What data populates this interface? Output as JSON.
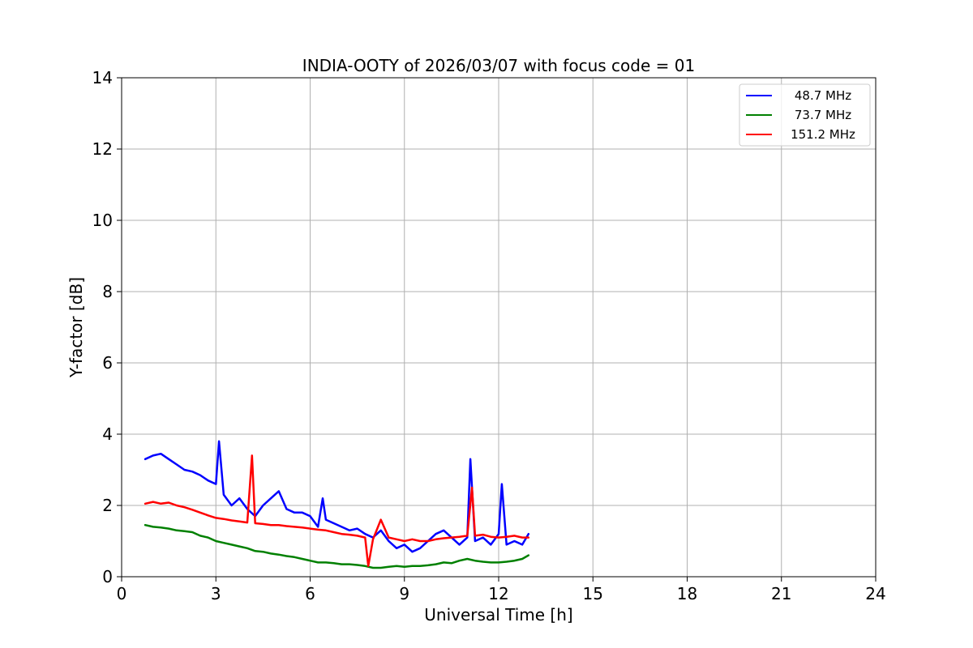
{
  "chart_data": {
    "type": "line",
    "title": "INDIA-OOTY of 2026/03/07 with focus code = 01",
    "xlabel": "Universal Time [h]",
    "ylabel": "Y-factor [dB]",
    "xlim": [
      0,
      24
    ],
    "ylim": [
      0,
      14
    ],
    "x_ticks": [
      0,
      3,
      6,
      9,
      12,
      15,
      18,
      21,
      24
    ],
    "y_ticks": [
      0,
      2,
      4,
      6,
      8,
      10,
      12,
      14
    ],
    "grid": true,
    "legend_position": "top-right",
    "series": [
      {
        "name": "48.7 MHz",
        "color": "#0000ff",
        "x": [
          0.75,
          1.0,
          1.25,
          1.5,
          1.75,
          2.0,
          2.25,
          2.5,
          2.75,
          3.0,
          3.1,
          3.25,
          3.5,
          3.75,
          4.0,
          4.25,
          4.5,
          4.75,
          5.0,
          5.25,
          5.5,
          5.75,
          6.0,
          6.25,
          6.4,
          6.5,
          6.75,
          7.0,
          7.25,
          7.5,
          7.75,
          8.0,
          8.25,
          8.5,
          8.75,
          9.0,
          9.25,
          9.5,
          9.75,
          10.0,
          10.25,
          10.5,
          10.75,
          11.0,
          11.1,
          11.25,
          11.5,
          11.75,
          12.0,
          12.1,
          12.25,
          12.5,
          12.75,
          12.95
        ],
        "y": [
          3.3,
          3.4,
          3.45,
          3.3,
          3.15,
          3.0,
          2.95,
          2.85,
          2.7,
          2.6,
          3.8,
          2.3,
          2.0,
          2.2,
          1.9,
          1.7,
          2.0,
          2.2,
          2.4,
          1.9,
          1.8,
          1.8,
          1.7,
          1.4,
          2.2,
          1.6,
          1.5,
          1.4,
          1.3,
          1.35,
          1.2,
          1.1,
          1.3,
          1.0,
          0.8,
          0.9,
          0.7,
          0.8,
          1.0,
          1.2,
          1.3,
          1.1,
          0.9,
          1.1,
          3.3,
          1.0,
          1.1,
          0.9,
          1.2,
          2.6,
          0.9,
          1.0,
          0.9,
          1.2
        ]
      },
      {
        "name": "73.7 MHz",
        "color": "#008000",
        "x": [
          0.75,
          1.0,
          1.25,
          1.5,
          1.75,
          2.0,
          2.25,
          2.5,
          2.75,
          3.0,
          3.25,
          3.5,
          3.75,
          4.0,
          4.25,
          4.5,
          4.75,
          5.0,
          5.25,
          5.5,
          5.75,
          6.0,
          6.25,
          6.5,
          6.75,
          7.0,
          7.25,
          7.5,
          7.75,
          8.0,
          8.25,
          8.5,
          8.75,
          9.0,
          9.25,
          9.5,
          9.75,
          10.0,
          10.25,
          10.5,
          10.75,
          11.0,
          11.25,
          11.5,
          11.75,
          12.0,
          12.25,
          12.5,
          12.75,
          12.95
        ],
        "y": [
          1.45,
          1.4,
          1.38,
          1.35,
          1.3,
          1.28,
          1.25,
          1.15,
          1.1,
          1.0,
          0.95,
          0.9,
          0.85,
          0.8,
          0.72,
          0.7,
          0.65,
          0.62,
          0.58,
          0.55,
          0.5,
          0.45,
          0.4,
          0.4,
          0.38,
          0.35,
          0.35,
          0.33,
          0.3,
          0.25,
          0.25,
          0.28,
          0.3,
          0.28,
          0.3,
          0.3,
          0.32,
          0.35,
          0.4,
          0.38,
          0.45,
          0.5,
          0.45,
          0.42,
          0.4,
          0.4,
          0.42,
          0.45,
          0.5,
          0.6
        ]
      },
      {
        "name": "151.2 MHz",
        "color": "#ff0000",
        "x": [
          0.75,
          1.0,
          1.25,
          1.5,
          1.75,
          2.0,
          2.25,
          2.5,
          2.75,
          3.0,
          3.25,
          3.5,
          3.75,
          4.0,
          4.15,
          4.25,
          4.5,
          4.75,
          5.0,
          5.25,
          5.5,
          5.75,
          6.0,
          6.25,
          6.5,
          6.75,
          7.0,
          7.25,
          7.5,
          7.75,
          7.85,
          8.0,
          8.25,
          8.5,
          8.75,
          9.0,
          9.25,
          9.5,
          9.75,
          10.0,
          10.25,
          10.5,
          10.75,
          11.0,
          11.15,
          11.25,
          11.5,
          11.75,
          12.0,
          12.25,
          12.5,
          12.75,
          12.95
        ],
        "y": [
          2.05,
          2.1,
          2.05,
          2.08,
          2.0,
          1.95,
          1.88,
          1.8,
          1.72,
          1.65,
          1.62,
          1.58,
          1.55,
          1.52,
          3.4,
          1.5,
          1.48,
          1.45,
          1.45,
          1.42,
          1.4,
          1.38,
          1.35,
          1.32,
          1.3,
          1.25,
          1.2,
          1.18,
          1.15,
          1.1,
          0.3,
          1.05,
          1.6,
          1.1,
          1.05,
          1.0,
          1.05,
          1.0,
          1.0,
          1.05,
          1.08,
          1.1,
          1.12,
          1.15,
          2.5,
          1.15,
          1.18,
          1.12,
          1.1,
          1.12,
          1.15,
          1.1,
          1.1
        ]
      }
    ]
  }
}
